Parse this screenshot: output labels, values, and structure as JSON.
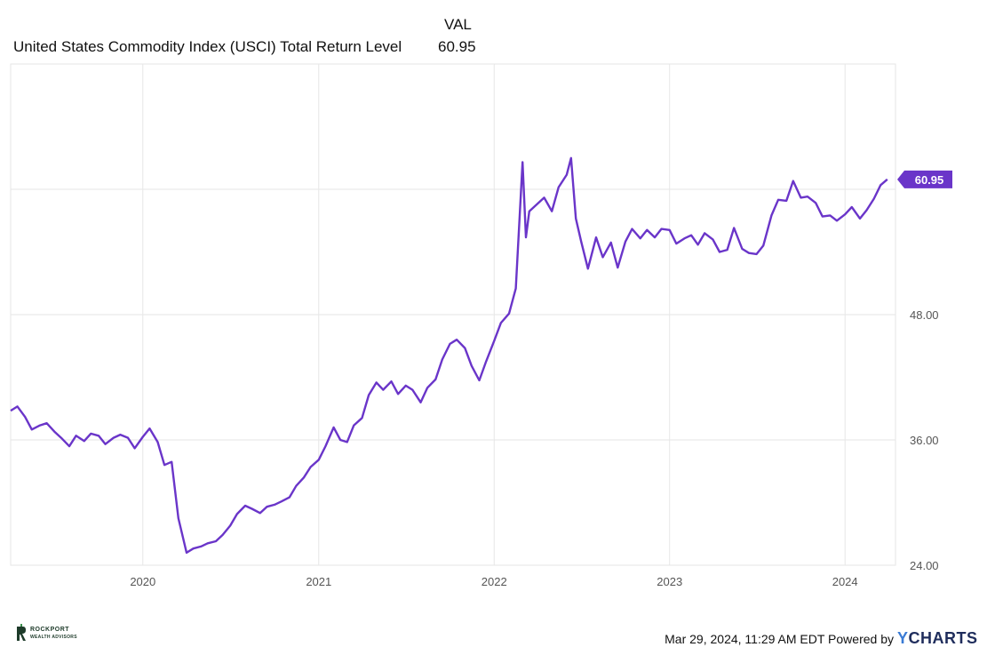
{
  "legend": {
    "column_header": "VAL",
    "series_name": "United States Commodity Index (USCI) Total Return Level",
    "series_value": "60.95"
  },
  "footer": {
    "timestamp": "Mar 29, 2024, 11:29 AM EDT Powered by",
    "brand_y": "Y",
    "brand_rest": "CHARTS",
    "logo_line1": "ROCKPORT",
    "logo_line2": "WEALTH ADVISORS"
  },
  "colors": {
    "series": "#6a35c9",
    "grid": "#e6e6e6",
    "axis_text": "#555555"
  },
  "chart_data": {
    "type": "line",
    "title": "",
    "xlabel": "",
    "ylabel": "",
    "x_ticks": [
      "2020",
      "2021",
      "2022",
      "2023",
      "2024"
    ],
    "y_ticks": [
      "24.00",
      "36.00",
      "48.00"
    ],
    "ylim": [
      24,
      72
    ],
    "xlim": [
      "2019-04-01",
      "2024-04-15"
    ],
    "grid": true,
    "last_value_label": "60.95",
    "series": [
      {
        "name": "United States Commodity Index (USCI) Total Return Level",
        "x": [
          "2019-04-01",
          "2019-04-15",
          "2019-05-01",
          "2019-05-15",
          "2019-06-01",
          "2019-06-15",
          "2019-07-01",
          "2019-07-15",
          "2019-08-01",
          "2019-08-15",
          "2019-09-01",
          "2019-09-15",
          "2019-10-01",
          "2019-10-15",
          "2019-11-01",
          "2019-11-15",
          "2019-12-01",
          "2019-12-15",
          "2020-01-01",
          "2020-01-15",
          "2020-02-01",
          "2020-02-15",
          "2020-03-01",
          "2020-03-15",
          "2020-04-01",
          "2020-04-15",
          "2020-05-01",
          "2020-05-15",
          "2020-06-01",
          "2020-06-15",
          "2020-07-01",
          "2020-07-15",
          "2020-08-01",
          "2020-08-15",
          "2020-09-01",
          "2020-09-15",
          "2020-10-01",
          "2020-10-15",
          "2020-11-01",
          "2020-11-15",
          "2020-12-01",
          "2020-12-15",
          "2021-01-01",
          "2021-01-15",
          "2021-02-01",
          "2021-02-15",
          "2021-03-01",
          "2021-03-15",
          "2021-04-01",
          "2021-04-15",
          "2021-05-01",
          "2021-05-15",
          "2021-06-01",
          "2021-06-15",
          "2021-07-01",
          "2021-07-15",
          "2021-08-01",
          "2021-08-15",
          "2021-09-01",
          "2021-09-15",
          "2021-10-01",
          "2021-10-15",
          "2021-11-01",
          "2021-11-15",
          "2021-12-01",
          "2021-12-15",
          "2022-01-01",
          "2022-01-15",
          "2022-02-01",
          "2022-02-15",
          "2022-03-01",
          "2022-03-08",
          "2022-03-15",
          "2022-04-01",
          "2022-04-15",
          "2022-05-01",
          "2022-05-15",
          "2022-06-01",
          "2022-06-10",
          "2022-06-20",
          "2022-07-01",
          "2022-07-15",
          "2022-08-01",
          "2022-08-15",
          "2022-09-01",
          "2022-09-15",
          "2022-10-01",
          "2022-10-15",
          "2022-11-01",
          "2022-11-15",
          "2022-12-01",
          "2022-12-15",
          "2023-01-01",
          "2023-01-15",
          "2023-02-01",
          "2023-02-15",
          "2023-03-01",
          "2023-03-15",
          "2023-04-01",
          "2023-04-15",
          "2023-05-01",
          "2023-05-15",
          "2023-06-01",
          "2023-06-15",
          "2023-07-01",
          "2023-07-15",
          "2023-08-01",
          "2023-08-15",
          "2023-09-01",
          "2023-09-15",
          "2023-10-01",
          "2023-10-15",
          "2023-11-01",
          "2023-11-15",
          "2023-12-01",
          "2023-12-15",
          "2024-01-01",
          "2024-01-15",
          "2024-02-01",
          "2024-02-15",
          "2024-03-01",
          "2024-03-15",
          "2024-03-29"
        ],
        "y": [
          38.8,
          39.2,
          38.2,
          37.0,
          37.4,
          37.6,
          36.8,
          36.2,
          35.4,
          36.4,
          35.9,
          36.6,
          36.4,
          35.6,
          36.2,
          36.5,
          36.2,
          35.2,
          36.3,
          37.1,
          35.8,
          33.6,
          33.9,
          28.5,
          25.2,
          25.6,
          25.8,
          26.1,
          26.3,
          26.9,
          27.8,
          28.9,
          29.7,
          29.4,
          29.0,
          29.6,
          29.8,
          30.1,
          30.5,
          31.6,
          32.4,
          33.4,
          34.1,
          35.4,
          37.2,
          36.0,
          35.8,
          37.4,
          38.1,
          40.3,
          41.5,
          40.8,
          41.6,
          40.4,
          41.2,
          40.8,
          39.6,
          41.0,
          41.8,
          43.7,
          45.2,
          45.6,
          44.8,
          43.1,
          41.7,
          43.5,
          45.5,
          47.2,
          48.1,
          50.5,
          62.6,
          55.4,
          57.9,
          58.6,
          59.2,
          57.9,
          60.2,
          61.4,
          63.0,
          57.2,
          55.0,
          52.4,
          55.4,
          53.5,
          54.9,
          52.5,
          55.0,
          56.2,
          55.3,
          56.1,
          55.4,
          56.2,
          56.1,
          54.8,
          55.3,
          55.6,
          54.7,
          55.8,
          55.2,
          54.0,
          54.2,
          56.3,
          54.3,
          53.9,
          53.8,
          54.6,
          57.5,
          59.0,
          58.9,
          60.8,
          59.2,
          59.3,
          58.7,
          57.4,
          57.5,
          57.0,
          57.6,
          58.3,
          57.2,
          58.0,
          59.1,
          60.4,
          60.95
        ]
      }
    ]
  }
}
